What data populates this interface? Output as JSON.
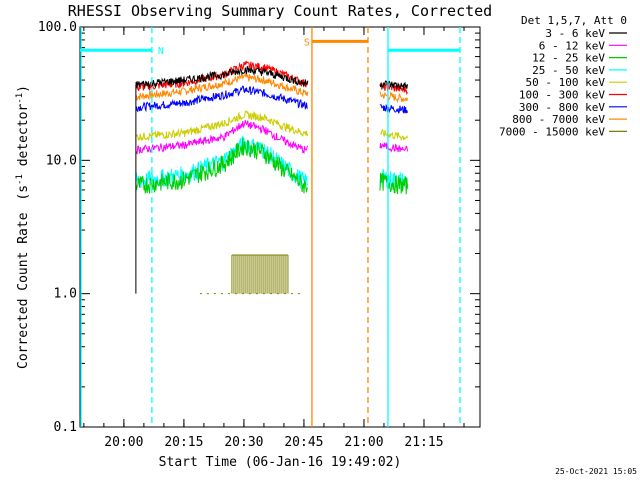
{
  "chart_data": {
    "type": "line",
    "title": "RHESSI Observing Summary Count Rates, Corrected",
    "xlabel": "Start Time (06-Jan-16 19:49:02)",
    "ylabel": "Corrected Count Rate",
    "ylabel_unit_base": "(s",
    "ylabel_unit_exp1": "-1",
    "ylabel_unit_mid": " detector",
    "ylabel_unit_exp2": "-1",
    "ylabel_unit_end": ")",
    "y_scale": "log",
    "ylim": [
      0.1,
      100.0
    ],
    "xlim": [
      "19:49:02",
      "21:29:00"
    ],
    "x_ticks": [
      "20:00",
      "20:15",
      "20:30",
      "20:45",
      "21:00",
      "21:15"
    ],
    "y_ticks": [
      "0.1",
      "1.0",
      "10.0",
      "100.0"
    ],
    "legend_header": "Det 1,5,7, Att 0",
    "legend_position": "top-right",
    "timestamp": "25-Oct-2021 15:05",
    "series": [
      {
        "name": "3 - 6 keV",
        "color": "#000000",
        "x": [
          "20:03",
          "20:15",
          "20:25",
          "20:30",
          "20:35",
          "20:40",
          "20:45",
          "21:04",
          "21:10"
        ],
        "values": [
          37,
          40,
          44,
          48,
          46,
          42,
          38,
          38,
          36
        ]
      },
      {
        "name": "6 - 12 keV",
        "color": "#ff00ff",
        "x": [
          "20:03",
          "20:15",
          "20:25",
          "20:30",
          "20:35",
          "20:40",
          "20:45",
          "21:04",
          "21:10"
        ],
        "values": [
          12,
          13,
          15,
          19,
          17,
          14,
          12,
          13,
          12
        ]
      },
      {
        "name": "12 - 25 keV",
        "color": "#00cc00",
        "x": [
          "20:03",
          "20:15",
          "20:25",
          "20:30",
          "20:35",
          "20:40",
          "20:45",
          "21:04",
          "21:10"
        ],
        "values": [
          6.5,
          7.2,
          9.5,
          13.0,
          11.5,
          8.5,
          6.5,
          7.0,
          6.5
        ]
      },
      {
        "name": "25 - 50 keV",
        "color": "#00ffff",
        "x": [
          "20:03",
          "20:15",
          "20:25",
          "20:30",
          "20:35",
          "20:40",
          "20:45",
          "21:04",
          "21:10"
        ],
        "values": [
          7.0,
          7.8,
          10.0,
          13.5,
          12.0,
          9.0,
          7.0,
          7.5,
          7.0
        ]
      },
      {
        "name": "50 - 100 keV",
        "color": "#cccc00",
        "x": [
          "20:03",
          "20:15",
          "20:25",
          "20:30",
          "20:35",
          "20:40",
          "20:45",
          "21:04",
          "21:10"
        ],
        "values": [
          15,
          16,
          19,
          22,
          21,
          18,
          16,
          16,
          15
        ]
      },
      {
        "name": "100 - 300 keV",
        "color": "#ff0000",
        "x": [
          "20:03",
          "20:15",
          "20:25",
          "20:30",
          "20:35",
          "20:40",
          "20:45",
          "21:04",
          "21:10"
        ],
        "values": [
          35,
          38,
          44,
          52,
          50,
          44,
          38,
          36,
          34
        ]
      },
      {
        "name": "300 - 800 keV",
        "color": "#0000ff",
        "x": [
          "20:03",
          "20:15",
          "20:25",
          "20:30",
          "20:35",
          "20:40",
          "20:45",
          "21:04",
          "21:10"
        ],
        "values": [
          25,
          27,
          31,
          34,
          32,
          29,
          26,
          25,
          24
        ]
      },
      {
        "name": "800 - 7000 keV",
        "color": "#ff8800",
        "x": [
          "20:03",
          "20:15",
          "20:25",
          "20:30",
          "20:35",
          "20:40",
          "20:45",
          "21:04",
          "21:10"
        ],
        "values": [
          30,
          33,
          38,
          42,
          40,
          36,
          32,
          31,
          29
        ]
      },
      {
        "name": "7000 - 15000 keV",
        "color": "#808000",
        "x": [
          "20:27",
          "20:29",
          "20:31",
          "20:33",
          "20:35",
          "20:37",
          "20:39",
          "20:41"
        ],
        "values": [
          1.95,
          1.95,
          1.95,
          1.95,
          1.95,
          1.95,
          1.95,
          1.95
        ]
      }
    ],
    "flag_bars": [
      {
        "label": "N",
        "color": "#00ffff",
        "x_start": "19:49:02",
        "x_end": "20:07",
        "level": 67
      },
      {
        "label": "",
        "color": "#00ffff",
        "x_start": "21:06",
        "x_end": "21:24",
        "level": 67
      },
      {
        "label": "S",
        "color": "#ff8800",
        "x_start": "20:47",
        "x_end": "21:01",
        "level": 78
      }
    ],
    "vlines": [
      {
        "x": "19:49:02",
        "color": "#00ffff",
        "style": "solid"
      },
      {
        "x": "20:07",
        "color": "#00ffff",
        "style": "dashed"
      },
      {
        "x": "20:47",
        "color": "#ff8800",
        "style": "solid"
      },
      {
        "x": "21:01",
        "color": "#ff8800",
        "style": "dashed"
      },
      {
        "x": "21:06",
        "color": "#00ffff",
        "style": "solid"
      },
      {
        "x": "21:24",
        "color": "#00ffff",
        "style": "dashed"
      }
    ],
    "grid": false
  }
}
